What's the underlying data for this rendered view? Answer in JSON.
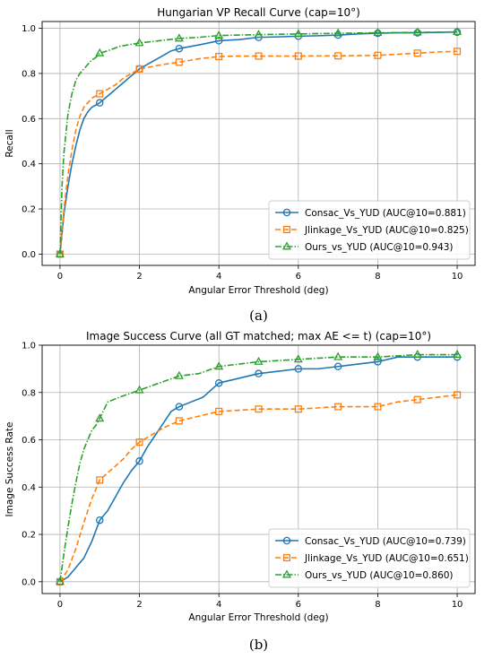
{
  "colors": {
    "consac": "#1f77b4",
    "jlinkage": "#ff7f0e",
    "ours": "#2ca02c",
    "grid": "#b0b0b0"
  },
  "chart_data": [
    {
      "type": "line",
      "title": "Hungarian VP Recall Curve (cap=10°)",
      "xlabel": "Angular Error Threshold (deg)",
      "ylabel": "Recall",
      "xlim": [
        -0.45,
        10.45
      ],
      "ylim": [
        -0.05,
        1.03
      ],
      "xticks": [
        0,
        2,
        4,
        6,
        8,
        10
      ],
      "yticks": [
        0.0,
        0.2,
        0.4,
        0.6,
        0.8,
        1.0
      ],
      "grid": true,
      "legend": "lower-right",
      "caption": "(a)",
      "series": [
        {
          "name": "Consac_Vs_YUD (AUC@10=0.881)",
          "color": "consac",
          "dash": "solid",
          "marker": "circle",
          "x": [
            0,
            0.1,
            0.2,
            0.3,
            0.4,
            0.5,
            0.6,
            0.7,
            0.8,
            0.9,
            1.0,
            1.2,
            1.4,
            1.6,
            1.8,
            2.0,
            2.2,
            2.4,
            2.6,
            2.8,
            3.0,
            3.3,
            3.6,
            4.0,
            4.5,
            5.0,
            5.5,
            6.0,
            6.5,
            7.0,
            7.5,
            8.0,
            8.5,
            9.0,
            9.5,
            10.0
          ],
          "y": [
            0.0,
            0.18,
            0.3,
            0.4,
            0.48,
            0.55,
            0.6,
            0.63,
            0.65,
            0.66,
            0.67,
            0.7,
            0.73,
            0.76,
            0.79,
            0.82,
            0.84,
            0.86,
            0.88,
            0.9,
            0.91,
            0.92,
            0.93,
            0.945,
            0.95,
            0.96,
            0.962,
            0.965,
            0.967,
            0.97,
            0.975,
            0.978,
            0.98,
            0.98,
            0.982,
            0.983
          ],
          "markers_x": [
            0,
            1,
            2,
            3,
            4,
            5,
            6,
            7,
            8,
            9,
            10
          ],
          "markers_y": [
            0.0,
            0.67,
            0.82,
            0.91,
            0.945,
            0.96,
            0.965,
            0.97,
            0.978,
            0.98,
            0.983
          ]
        },
        {
          "name": "Jlinkage_Vs_YUD (AUC@10=0.825)",
          "color": "jlinkage",
          "dash": "dashed",
          "marker": "square",
          "x": [
            0,
            0.1,
            0.2,
            0.3,
            0.4,
            0.5,
            0.6,
            0.7,
            0.8,
            0.9,
            1.0,
            1.2,
            1.4,
            1.6,
            1.8,
            2.0,
            2.3,
            2.6,
            3.0,
            3.5,
            4.0,
            4.5,
            5.0,
            6.0,
            7.0,
            8.0,
            8.5,
            9.0,
            9.5,
            10.0
          ],
          "y": [
            0.0,
            0.2,
            0.35,
            0.46,
            0.55,
            0.61,
            0.65,
            0.67,
            0.69,
            0.7,
            0.71,
            0.73,
            0.75,
            0.78,
            0.8,
            0.82,
            0.83,
            0.84,
            0.85,
            0.865,
            0.875,
            0.877,
            0.877,
            0.877,
            0.878,
            0.88,
            0.885,
            0.89,
            0.895,
            0.898
          ],
          "markers_x": [
            0,
            1,
            2,
            3,
            4,
            5,
            6,
            7,
            8,
            9,
            10
          ],
          "markers_y": [
            0.0,
            0.71,
            0.82,
            0.85,
            0.875,
            0.877,
            0.877,
            0.878,
            0.88,
            0.89,
            0.898
          ]
        },
        {
          "name": "Ours_vs_YUD (AUC@10=0.943)",
          "color": "ours",
          "dash": "dashdot",
          "marker": "triangle",
          "x": [
            0,
            0.05,
            0.1,
            0.2,
            0.3,
            0.4,
            0.5,
            0.6,
            0.7,
            0.8,
            0.9,
            1.0,
            1.2,
            1.5,
            2.0,
            2.5,
            3.0,
            3.5,
            4.0,
            5.0,
            6.0,
            7.0,
            8.0,
            9.0,
            10.0
          ],
          "y": [
            0.0,
            0.3,
            0.45,
            0.62,
            0.71,
            0.77,
            0.8,
            0.82,
            0.84,
            0.86,
            0.87,
            0.89,
            0.9,
            0.92,
            0.935,
            0.945,
            0.955,
            0.96,
            0.968,
            0.972,
            0.975,
            0.978,
            0.98,
            0.982,
            0.984
          ],
          "markers_x": [
            0,
            1,
            2,
            3,
            4,
            5,
            6,
            7,
            8,
            9,
            10
          ],
          "markers_y": [
            0.0,
            0.89,
            0.935,
            0.955,
            0.968,
            0.972,
            0.975,
            0.978,
            0.98,
            0.982,
            0.984
          ]
        }
      ]
    },
    {
      "type": "line",
      "title": "Image Success Curve (all GT matched; max AE <= t) (cap=10°)",
      "xlabel": "Angular Error Threshold (deg)",
      "ylabel": "Image Success Rate",
      "xlim": [
        -0.45,
        10.45
      ],
      "ylim": [
        -0.05,
        1.0
      ],
      "xticks": [
        0,
        2,
        4,
        6,
        8,
        10
      ],
      "yticks": [
        0.0,
        0.2,
        0.4,
        0.6,
        0.8,
        1.0
      ],
      "grid": true,
      "legend": "lower-right",
      "caption": "(b)",
      "series": [
        {
          "name": "Consac_Vs_YUD (AUC@10=0.739)",
          "color": "consac",
          "dash": "solid",
          "marker": "circle",
          "x": [
            0,
            0.2,
            0.4,
            0.6,
            0.8,
            1.0,
            1.2,
            1.4,
            1.6,
            1.8,
            2.0,
            2.2,
            2.4,
            2.6,
            2.8,
            3.0,
            3.3,
            3.6,
            4.0,
            4.5,
            5.0,
            5.5,
            6.0,
            6.5,
            7.0,
            7.5,
            8.0,
            8.5,
            9.0,
            9.5,
            10.0
          ],
          "y": [
            0.0,
            0.02,
            0.06,
            0.1,
            0.17,
            0.26,
            0.3,
            0.36,
            0.42,
            0.47,
            0.51,
            0.57,
            0.62,
            0.67,
            0.72,
            0.74,
            0.76,
            0.78,
            0.84,
            0.86,
            0.88,
            0.89,
            0.9,
            0.9,
            0.91,
            0.92,
            0.93,
            0.95,
            0.95,
            0.95,
            0.95
          ],
          "markers_x": [
            0,
            1,
            2,
            3,
            4,
            5,
            6,
            7,
            8,
            9,
            10
          ],
          "markers_y": [
            0.0,
            0.26,
            0.51,
            0.74,
            0.84,
            0.88,
            0.9,
            0.91,
            0.93,
            0.95,
            0.95
          ]
        },
        {
          "name": "Jlinkage_Vs_YUD (AUC@10=0.651)",
          "color": "jlinkage",
          "dash": "dashed",
          "marker": "square",
          "x": [
            0,
            0.2,
            0.4,
            0.6,
            0.8,
            1.0,
            1.2,
            1.4,
            1.6,
            1.8,
            2.0,
            2.3,
            2.6,
            3.0,
            3.5,
            4.0,
            4.5,
            5.0,
            6.0,
            7.0,
            8.0,
            8.5,
            9.0,
            9.5,
            10.0
          ],
          "y": [
            0.0,
            0.05,
            0.14,
            0.25,
            0.35,
            0.43,
            0.46,
            0.49,
            0.52,
            0.56,
            0.59,
            0.62,
            0.65,
            0.68,
            0.7,
            0.72,
            0.725,
            0.73,
            0.73,
            0.74,
            0.74,
            0.76,
            0.77,
            0.78,
            0.79
          ],
          "markers_x": [
            0,
            1,
            2,
            3,
            4,
            5,
            6,
            7,
            8,
            9,
            10
          ],
          "markers_y": [
            0.0,
            0.43,
            0.59,
            0.68,
            0.72,
            0.73,
            0.73,
            0.74,
            0.74,
            0.77,
            0.79
          ]
        },
        {
          "name": "Ours_vs_YUD (AUC@10=0.860)",
          "color": "ours",
          "dash": "dashdot",
          "marker": "triangle",
          "x": [
            0,
            0.1,
            0.2,
            0.3,
            0.4,
            0.5,
            0.6,
            0.7,
            0.8,
            0.9,
            1.0,
            1.2,
            1.5,
            2.0,
            2.5,
            3.0,
            3.5,
            4.0,
            4.5,
            5.0,
            6.0,
            7.0,
            8.0,
            9.0,
            10.0
          ],
          "y": [
            0.0,
            0.12,
            0.23,
            0.33,
            0.42,
            0.5,
            0.56,
            0.6,
            0.64,
            0.66,
            0.69,
            0.76,
            0.78,
            0.81,
            0.84,
            0.87,
            0.88,
            0.91,
            0.92,
            0.93,
            0.94,
            0.95,
            0.95,
            0.96,
            0.96
          ],
          "markers_x": [
            0,
            1,
            2,
            3,
            4,
            5,
            6,
            7,
            8,
            9,
            10
          ],
          "markers_y": [
            0.0,
            0.69,
            0.81,
            0.87,
            0.91,
            0.93,
            0.94,
            0.95,
            0.95,
            0.96,
            0.96
          ]
        }
      ]
    }
  ]
}
